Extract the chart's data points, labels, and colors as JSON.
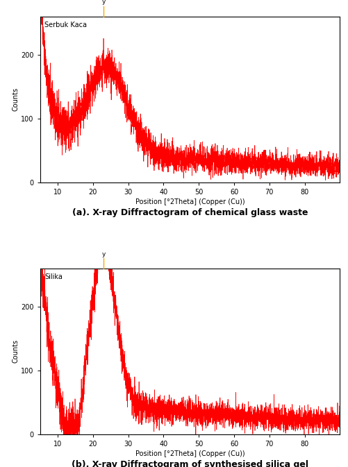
{
  "plot_a": {
    "label": "Serbuk Kaca",
    "xlabel": "Position [°2Theta] (Copper (Cu))",
    "ylabel": "Counts",
    "xlim": [
      5,
      90
    ],
    "ylim": [
      0,
      260
    ],
    "yticks": [
      0,
      100,
      200
    ],
    "xticks": [
      10,
      20,
      30,
      40,
      50,
      60,
      70,
      80
    ],
    "marker_x": 23.0,
    "marker_color": "#FFA500",
    "caption": "(a). X-ray Diffractogram of chemical glass waste"
  },
  "plot_b": {
    "label": "Silika",
    "xlabel": "Position [°2Theta] (Copper (Cu))",
    "ylabel": "Counts",
    "xlim": [
      5,
      90
    ],
    "ylim": [
      0,
      260
    ],
    "yticks": [
      0,
      100,
      200
    ],
    "xticks": [
      10,
      20,
      30,
      40,
      50,
      60,
      70,
      80
    ],
    "marker_x": 23.0,
    "marker_color": "#FFA500",
    "caption": "(b). X-ray Diffractogram of synthesised silica gel"
  },
  "line_color": "#FF0000",
  "background_color": "#FFFFFF",
  "seed_a": 42,
  "seed_b": 77
}
